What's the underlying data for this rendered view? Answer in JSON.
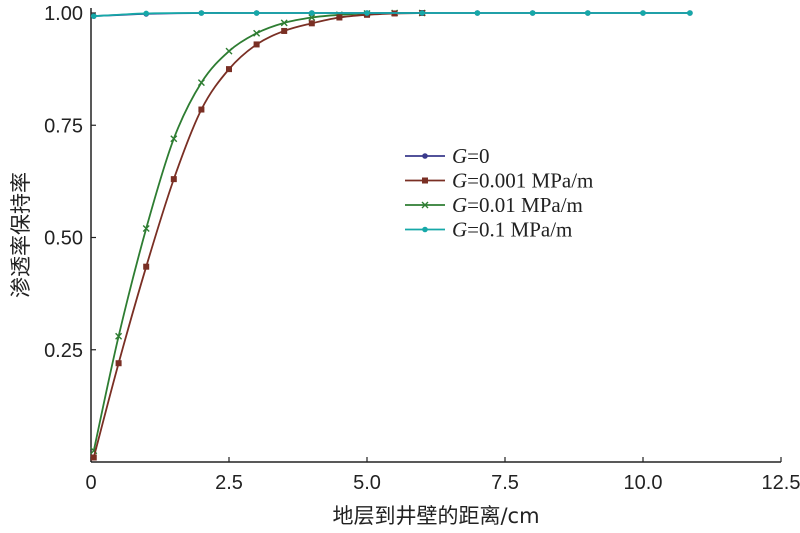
{
  "chart_data": {
    "type": "line",
    "title": "",
    "xlabel": "地层到井壁的距离/cm",
    "ylabel": "渗透率保持率",
    "xlim": [
      0,
      12.5
    ],
    "ylim": [
      0,
      1.0
    ],
    "xticks": [
      0,
      2.5,
      5.0,
      7.5,
      10.0,
      12.5
    ],
    "xtick_labels": [
      "0",
      "2.5",
      "5.0",
      "7.5",
      "10.0",
      "12.5"
    ],
    "yticks": [
      0.25,
      0.5,
      0.75,
      1.0
    ],
    "ytick_labels": [
      "0.25",
      "0.50",
      "0.75",
      "1.00"
    ],
    "grid": false,
    "legend_position": "center",
    "series": [
      {
        "name": "G=0",
        "name_prefix": "G",
        "name_suffix": "=0",
        "color": "#3a3a8c",
        "marker": "circle",
        "x": [
          0.05,
          1,
          2,
          3,
          4,
          5,
          6,
          7,
          8,
          9,
          10,
          10.85
        ],
        "y": [
          0.993,
          0.998,
          1.0,
          1.0,
          1.0,
          1.0,
          1.0,
          1.0,
          1.0,
          1.0,
          1.0,
          1.0
        ]
      },
      {
        "name": "G=0.001 MPa/m",
        "name_prefix": "G",
        "name_suffix": "=0.001 MPa/m",
        "color": "#7a2f24",
        "marker": "square",
        "x": [
          0.05,
          0.5,
          1.0,
          1.5,
          2.0,
          2.5,
          3.0,
          3.5,
          4.0,
          4.5,
          5.0,
          5.5,
          6.0
        ],
        "y": [
          0.01,
          0.22,
          0.435,
          0.63,
          0.785,
          0.875,
          0.93,
          0.96,
          0.977,
          0.99,
          0.996,
          0.999,
          1.0
        ]
      },
      {
        "name": "G=0.01 MPa/m",
        "name_prefix": "G",
        "name_suffix": "=0.01 MPa/m",
        "color": "#2e7d32",
        "marker": "cross",
        "x": [
          0.05,
          0.5,
          1.0,
          1.5,
          2.0,
          2.5,
          3.0,
          3.5,
          4.0,
          4.5,
          5.0,
          5.5,
          6.0
        ],
        "y": [
          0.025,
          0.28,
          0.52,
          0.72,
          0.845,
          0.915,
          0.955,
          0.978,
          0.99,
          0.996,
          0.999,
          1.0,
          1.0
        ]
      },
      {
        "name": "G=0.1 MPa/m",
        "name_prefix": "G",
        "name_suffix": "=0.1 MPa/m",
        "color": "#16a8a8",
        "marker": "circle",
        "x": [
          0.05,
          1,
          2,
          3,
          4,
          5,
          6,
          7,
          8,
          9,
          10,
          10.85
        ],
        "y": [
          0.993,
          0.999,
          1.0,
          1.0,
          1.0,
          1.0,
          1.0,
          1.0,
          1.0,
          1.0,
          1.0,
          1.0
        ]
      }
    ],
    "series_draw_order": [
      2,
      1,
      0,
      3
    ]
  }
}
